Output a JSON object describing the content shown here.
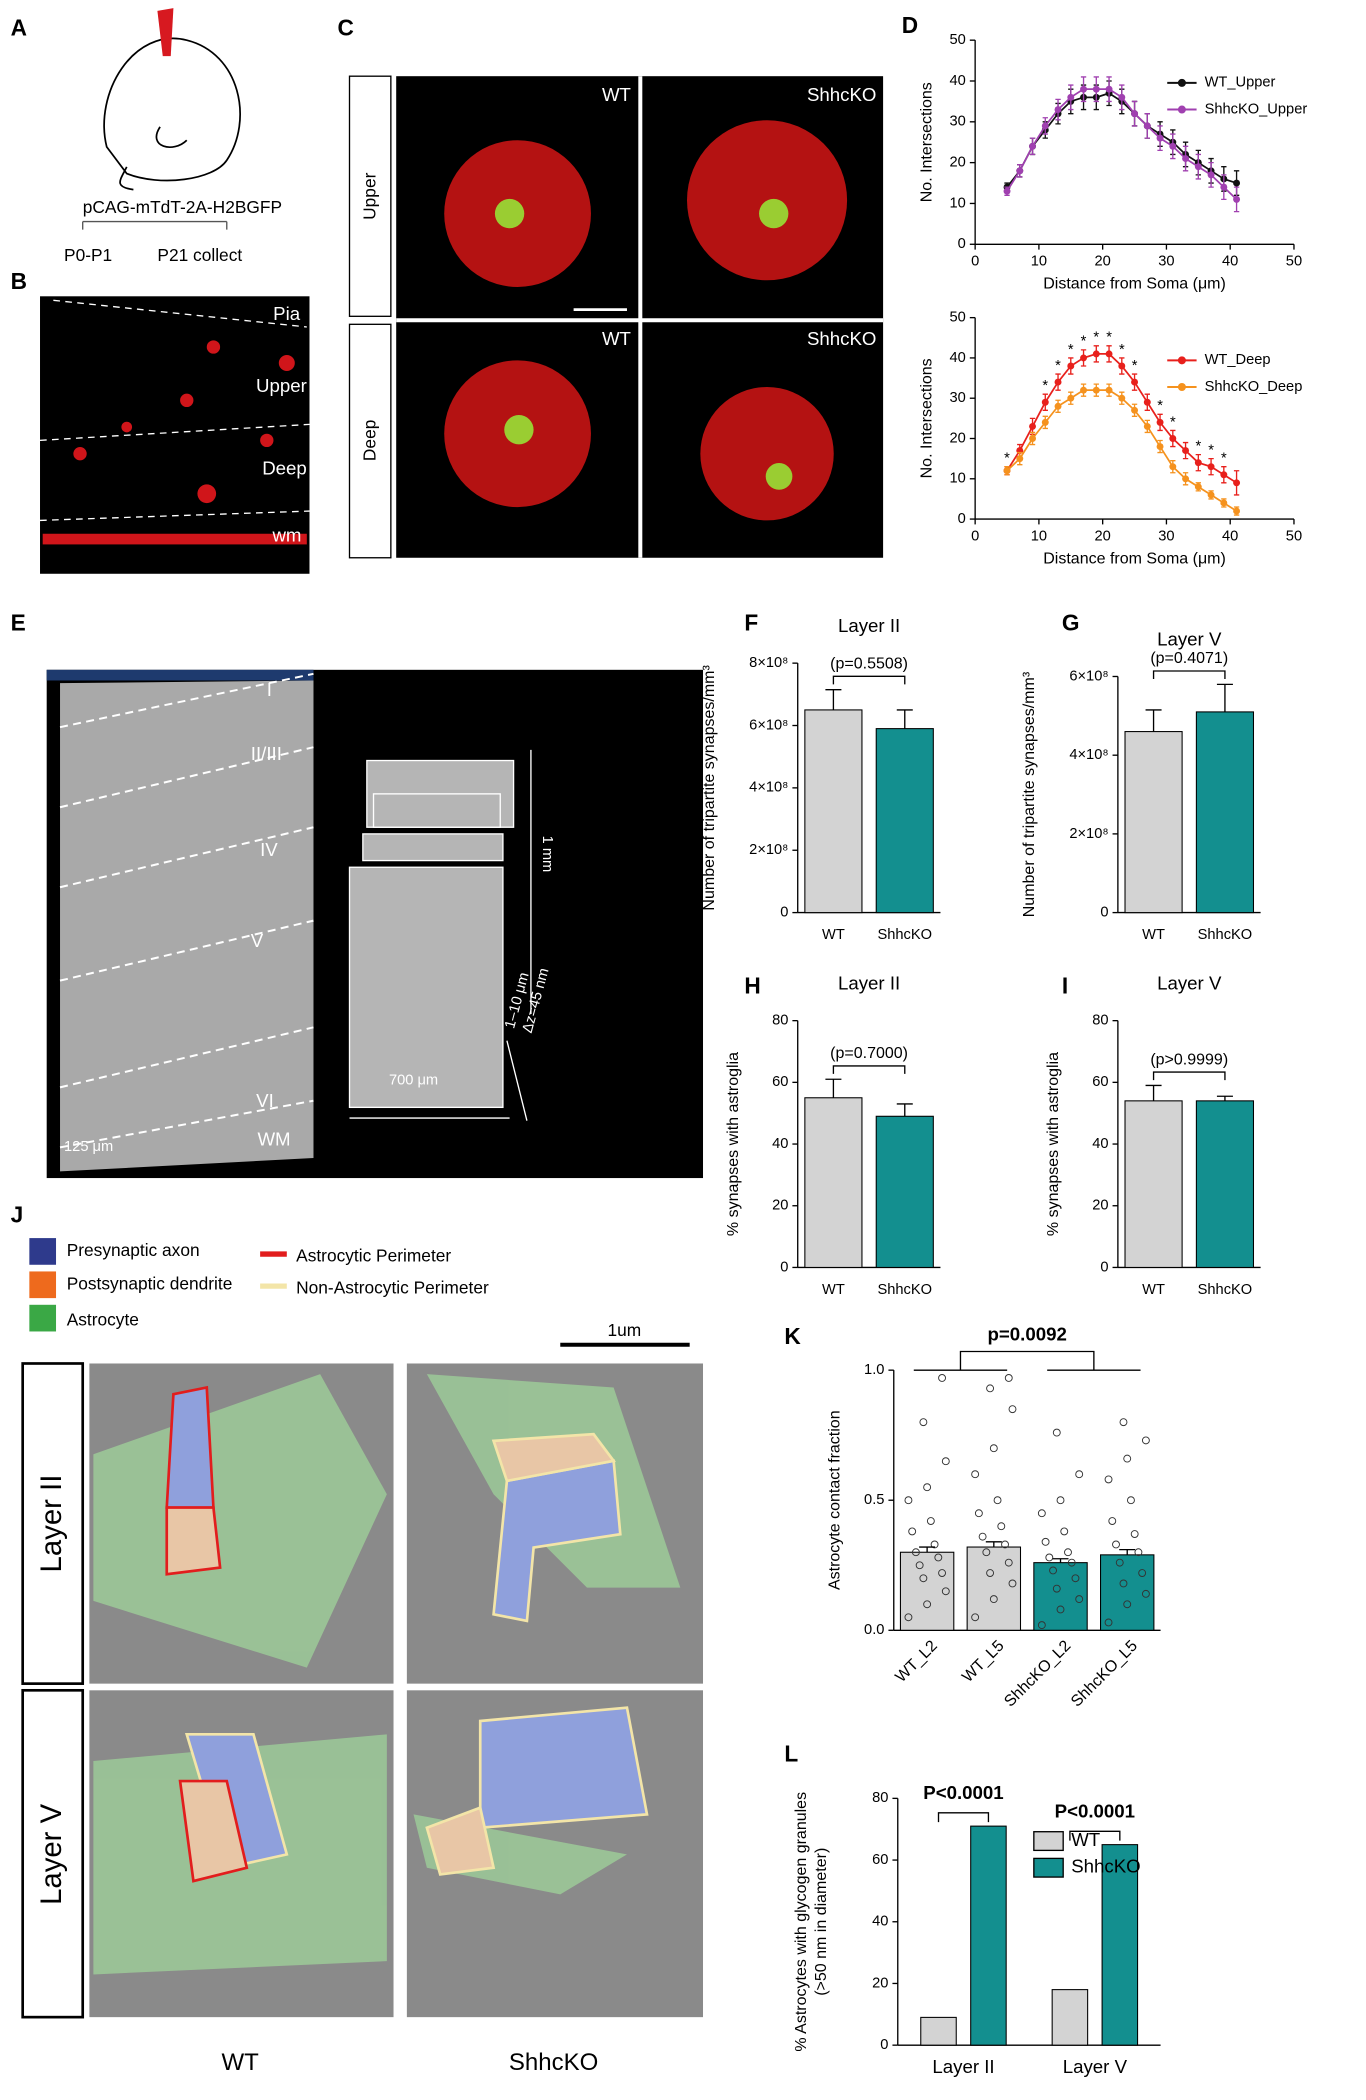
{
  "panel_labels": [
    "A",
    "B",
    "C",
    "D",
    "E",
    "F",
    "G",
    "H",
    "I",
    "J",
    "K",
    "L"
  ],
  "panel_a": {
    "construct": "pCAG-mTdT-2A-H2BGFP",
    "injection": "P0-P1",
    "collection": "P21 collect"
  },
  "panel_b": {
    "layers": [
      "Pia",
      "Upper",
      "Deep",
      "wm"
    ]
  },
  "panel_c": {
    "rows": [
      "Upper",
      "Deep"
    ],
    "columns": [
      "WT",
      "ShhcKO"
    ]
  },
  "panel_e": {
    "layers": [
      "I",
      "II/III",
      "IV",
      "V",
      "VI",
      "WM"
    ],
    "scale": "125 μm",
    "height": "1 mm",
    "width": "700 μm",
    "depth": "1–10 μm",
    "step": "Δz=45 nm"
  },
  "panel_j": {
    "legend": [
      "Presynaptic axon",
      "Postsynaptic dendrite",
      "Astrocyte"
    ],
    "perimeters": [
      "Astrocytic Perimeter",
      "Non-Astrocytic Perimeter"
    ],
    "scale": "1um",
    "rows": [
      "Layer II",
      "Layer V"
    ],
    "columns": [
      "WT",
      "ShhcKO"
    ]
  },
  "chart_data": [
    {
      "type": "line",
      "x": [
        5,
        7,
        9,
        11,
        13,
        15,
        17,
        19,
        21,
        23,
        25,
        27,
        29,
        31,
        33,
        35,
        37,
        39,
        41
      ],
      "xlim": [
        0,
        50
      ],
      "xticks": [
        0,
        10,
        20,
        30,
        40,
        50
      ],
      "ylim": [
        0,
        50
      ],
      "yticks": [
        0,
        10,
        20,
        30,
        40,
        50
      ],
      "xlabel": "Distance from Soma (μm)",
      "ylabel": "No. Intersections",
      "legend": "upper right",
      "series": [
        {
          "name": "WT_Upper",
          "color": "#111111",
          "values": [
            14,
            18,
            24,
            28,
            32,
            35,
            36,
            36,
            37,
            35,
            32,
            29,
            27,
            25,
            22,
            20,
            18,
            16,
            15
          ],
          "errors": [
            1,
            1.5,
            2,
            2,
            2.5,
            3,
            3,
            3,
            3,
            3,
            3,
            3,
            3,
            3,
            3,
            3,
            3,
            3,
            3
          ]
        },
        {
          "name": "ShhcKO_Upper",
          "color": "#a040b0",
          "values": [
            13,
            18,
            24,
            29,
            33,
            36,
            38,
            38,
            38,
            36,
            32,
            29,
            26,
            24,
            21,
            19,
            17,
            14,
            11
          ],
          "errors": [
            1,
            1.5,
            2,
            2,
            2.5,
            3,
            3,
            3,
            3,
            3,
            3,
            3,
            3,
            3,
            3,
            3,
            3,
            3,
            3
          ]
        }
      ]
    },
    {
      "type": "line",
      "x": [
        5,
        7,
        9,
        11,
        13,
        15,
        17,
        19,
        21,
        23,
        25,
        27,
        29,
        31,
        33,
        35,
        37,
        39,
        41
      ],
      "xlim": [
        0,
        50
      ],
      "xticks": [
        0,
        10,
        20,
        30,
        40,
        50
      ],
      "ylim": [
        0,
        50
      ],
      "yticks": [
        0,
        10,
        20,
        30,
        40,
        50
      ],
      "xlabel": "Distance from Soma (μm)",
      "ylabel": "No. Intersections",
      "legend": "upper right",
      "significance": {
        "label": "*",
        "x": [
          5,
          11,
          13,
          15,
          17,
          19,
          21,
          23,
          25,
          29,
          31,
          35,
          37,
          39
        ]
      },
      "series": [
        {
          "name": "WT_Deep",
          "color": "#e8201c",
          "values": [
            12,
            17,
            23,
            29,
            34,
            38,
            40,
            41,
            41,
            38,
            34,
            29,
            24,
            20,
            17,
            14,
            13,
            11,
            9
          ],
          "errors": [
            1,
            1.5,
            2,
            2,
            2,
            2,
            2,
            2,
            2,
            2,
            2,
            2,
            2,
            2,
            2,
            2,
            2,
            2,
            3
          ]
        },
        {
          "name": "ShhcKO_Deep",
          "color": "#f5921e",
          "values": [
            12,
            15,
            20,
            24,
            28,
            30,
            32,
            32,
            32,
            30,
            27,
            23,
            18,
            13,
            10,
            8,
            6,
            4,
            2
          ],
          "errors": [
            1,
            1.5,
            1.5,
            1.5,
            1.5,
            1.5,
            1.5,
            1.5,
            1.5,
            1.5,
            1.5,
            1.5,
            1.5,
            1.5,
            1.5,
            1,
            1,
            1,
            1
          ]
        }
      ]
    },
    {
      "type": "bar",
      "title": "Layer II",
      "categories": [
        "WT",
        "ShhcKO"
      ],
      "values": [
        650000000,
        590000000
      ],
      "errors": [
        65000000,
        60000000
      ],
      "colors": [
        "#d3d3d3",
        "#138f8f"
      ],
      "ylabel": "Number of tripartite synapses/mm³",
      "ylim": [
        0,
        800000000
      ],
      "yticks": [
        0,
        {
          "value": 200000000,
          "label": "2×10⁸"
        },
        {
          "value": 400000000,
          "label": "4×10⁸"
        },
        {
          "value": 600000000,
          "label": "6×10⁸"
        },
        {
          "value": 800000000,
          "label": "8×10⁸"
        }
      ],
      "annotation": "(p=0.5508)"
    },
    {
      "type": "bar",
      "title": "Layer V",
      "categories": [
        "WT",
        "ShhcKO"
      ],
      "values": [
        460000000,
        510000000
      ],
      "errors": [
        55000000,
        70000000
      ],
      "colors": [
        "#d3d3d3",
        "#138f8f"
      ],
      "ylabel": "Number of tripartite synapses/mm³",
      "ylim": [
        0,
        600000000
      ],
      "yticks": [
        0,
        {
          "value": 200000000,
          "label": "2×10⁸"
        },
        {
          "value": 400000000,
          "label": "4×10⁸"
        },
        {
          "value": 600000000,
          "label": "6×10⁸"
        }
      ],
      "annotation": "(p=0.4071)"
    },
    {
      "type": "bar",
      "title": "Layer II",
      "categories": [
        "WT",
        "ShhcKO"
      ],
      "values": [
        55,
        49
      ],
      "errors": [
        6,
        4
      ],
      "colors": [
        "#d3d3d3",
        "#138f8f"
      ],
      "ylabel": "% synapses with astroglia",
      "ylim": [
        0,
        80
      ],
      "yticks": [
        0,
        20,
        40,
        60,
        80
      ],
      "annotation": "(p=0.7000)"
    },
    {
      "type": "bar",
      "title": "Layer V",
      "categories": [
        "WT",
        "ShhcKO"
      ],
      "values": [
        54,
        54
      ],
      "errors": [
        5,
        1.5
      ],
      "colors": [
        "#d3d3d3",
        "#138f8f"
      ],
      "ylabel": "% synapses with astroglia",
      "ylim": [
        0,
        80
      ],
      "yticks": [
        0,
        20,
        40,
        60,
        80
      ],
      "annotation": "(p>0.9999)"
    },
    {
      "type": "bar",
      "categories": [
        "WT_L2",
        "WT_L5",
        "ShhcKO_L2",
        "ShhcKO_L5"
      ],
      "values": [
        0.3,
        0.32,
        0.26,
        0.29
      ],
      "errors": [
        0.02,
        0.02,
        0.015,
        0.02
      ],
      "colors": [
        "#d3d3d3",
        "#d3d3d3",
        "#138f8f",
        "#138f8f"
      ],
      "ylabel": "Astrocyte contact fraction",
      "ylim": [
        0,
        1
      ],
      "yticks": [
        {
          "value": 0,
          "label": "0.0"
        },
        0.5,
        {
          "value": 1,
          "label": "1.0"
        }
      ],
      "annotation": "p=0.0092",
      "points": [
        [
          0.05,
          0.1,
          0.15,
          0.2,
          0.22,
          0.25,
          0.28,
          0.3,
          0.33,
          0.38,
          0.42,
          0.5,
          0.55,
          0.65,
          0.8,
          0.97
        ],
        [
          0.05,
          0.12,
          0.18,
          0.22,
          0.26,
          0.3,
          0.33,
          0.36,
          0.4,
          0.45,
          0.5,
          0.6,
          0.7,
          0.85,
          0.93,
          0.97
        ],
        [
          0.02,
          0.08,
          0.12,
          0.16,
          0.2,
          0.23,
          0.26,
          0.28,
          0.3,
          0.34,
          0.38,
          0.45,
          0.5,
          0.6,
          0.76
        ],
        [
          0.03,
          0.1,
          0.14,
          0.18,
          0.22,
          0.26,
          0.3,
          0.33,
          0.37,
          0.42,
          0.5,
          0.58,
          0.66,
          0.73,
          0.8
        ]
      ]
    },
    {
      "type": "bar",
      "categories": [
        "Layer II",
        "Layer V"
      ],
      "series": [
        {
          "name": "WT",
          "color": "#d3d3d3",
          "values": [
            9,
            18
          ]
        },
        {
          "name": "ShhcKO",
          "color": "#138f8f",
          "values": [
            71,
            65
          ]
        }
      ],
      "ylabel": [
        "% Astrocytes with glycogen granules",
        "(>50 nm in diameter)"
      ],
      "ylim": [
        0,
        80
      ],
      "yticks": [
        0,
        20,
        40,
        60,
        80
      ],
      "annotations": [
        "P<0.0001",
        "P<0.0001"
      ],
      "legend": "upper right"
    }
  ]
}
